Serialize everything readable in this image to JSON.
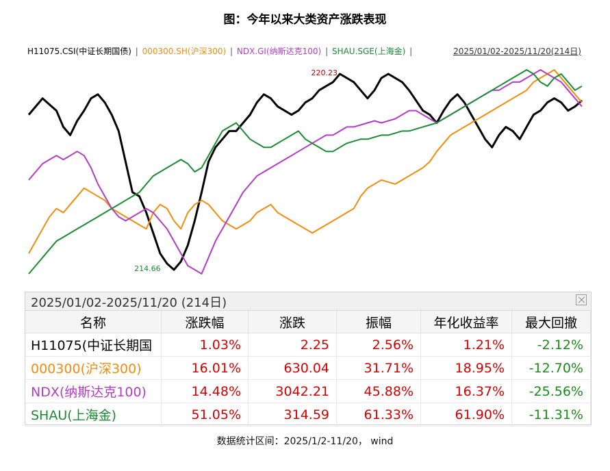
{
  "title": "图：今年以来大类资产涨跌表现",
  "legend_items": [
    {
      "label": "H11075.CSI(中证长期国债)",
      "color": "#000000"
    },
    {
      "label": "000300.SH(沪深300)",
      "color": "#f28c0f"
    },
    {
      "label": "NDX.GI(纳斯达克100)",
      "color": "#b23cc2"
    },
    {
      "label": "SHAU.SGE(上海金)",
      "color": "#1a8a34"
    }
  ],
  "legend_sep": "|",
  "date_range_label": "2025/01/02-2025/11/20(214日)",
  "chart_data": {
    "type": "line",
    "annotations": {
      "max_label": "220.23",
      "min_label": "214.66"
    },
    "x_start": "2025/01/02",
    "x_end": "2025/11/20",
    "series": [
      {
        "name": "H11075.CSI(中证长期国债)",
        "color": "#000000",
        "values": [
          0.78,
          0.82,
          0.86,
          0.83,
          0.8,
          0.72,
          0.68,
          0.75,
          0.8,
          0.86,
          0.88,
          0.84,
          0.78,
          0.7,
          0.55,
          0.4,
          0.38,
          0.3,
          0.2,
          0.1,
          0.05,
          0.02,
          0.06,
          0.14,
          0.26,
          0.4,
          0.55,
          0.62,
          0.66,
          0.7,
          0.7,
          0.74,
          0.78,
          0.84,
          0.88,
          0.86,
          0.82,
          0.8,
          0.78,
          0.8,
          0.84,
          0.86,
          0.9,
          0.92,
          0.94,
          0.98,
          0.96,
          0.94,
          0.9,
          0.86,
          0.9,
          0.96,
          0.98,
          0.96,
          0.94,
          0.9,
          0.85,
          0.8,
          0.78,
          0.74,
          0.8,
          0.85,
          0.88,
          0.84,
          0.78,
          0.72,
          0.66,
          0.62,
          0.68,
          0.72,
          0.7,
          0.66,
          0.72,
          0.78,
          0.8,
          0.84,
          0.86,
          0.84,
          0.8,
          0.82,
          0.85
        ]
      },
      {
        "name": "000300.SH(沪深300)",
        "color": "#f28c0f",
        "values": [
          0.1,
          0.16,
          0.22,
          0.28,
          0.32,
          0.3,
          0.34,
          0.38,
          0.42,
          0.4,
          0.38,
          0.36,
          0.32,
          0.3,
          0.28,
          0.26,
          0.24,
          0.22,
          0.3,
          0.34,
          0.32,
          0.26,
          0.22,
          0.3,
          0.34,
          0.36,
          0.34,
          0.3,
          0.26,
          0.24,
          0.22,
          0.24,
          0.26,
          0.3,
          0.32,
          0.34,
          0.3,
          0.28,
          0.26,
          0.24,
          0.22,
          0.2,
          0.22,
          0.24,
          0.26,
          0.28,
          0.3,
          0.32,
          0.38,
          0.42,
          0.44,
          0.46,
          0.45,
          0.44,
          0.46,
          0.48,
          0.5,
          0.52,
          0.55,
          0.6,
          0.64,
          0.68,
          0.7,
          0.72,
          0.74,
          0.76,
          0.78,
          0.8,
          0.82,
          0.84,
          0.86,
          0.88,
          0.9,
          0.94,
          0.96,
          0.98,
          1.0,
          0.96,
          0.92,
          0.88,
          0.84
        ]
      },
      {
        "name": "NDX.GI(纳斯达克100)",
        "color": "#b23cc2",
        "values": [
          0.46,
          0.5,
          0.54,
          0.56,
          0.58,
          0.56,
          0.58,
          0.6,
          0.58,
          0.52,
          0.44,
          0.38,
          0.32,
          0.28,
          0.26,
          0.28,
          0.3,
          0.32,
          0.3,
          0.26,
          0.22,
          0.16,
          0.1,
          0.04,
          0.02,
          0.0,
          0.08,
          0.16,
          0.22,
          0.28,
          0.34,
          0.4,
          0.44,
          0.48,
          0.5,
          0.52,
          0.54,
          0.56,
          0.58,
          0.6,
          0.62,
          0.64,
          0.66,
          0.68,
          0.68,
          0.7,
          0.72,
          0.72,
          0.73,
          0.74,
          0.75,
          0.74,
          0.75,
          0.76,
          0.78,
          0.8,
          0.8,
          0.78,
          0.76,
          0.74,
          0.76,
          0.78,
          0.8,
          0.82,
          0.84,
          0.86,
          0.88,
          0.9,
          0.9,
          0.92,
          0.94,
          0.94,
          0.96,
          0.98,
          1.0,
          0.98,
          0.96,
          0.94,
          0.9,
          0.86,
          0.82
        ]
      },
      {
        "name": "SHAU.SGE(上海金)",
        "color": "#1a8a34",
        "values": [
          0.0,
          0.04,
          0.08,
          0.12,
          0.16,
          0.18,
          0.2,
          0.22,
          0.24,
          0.26,
          0.28,
          0.3,
          0.32,
          0.34,
          0.36,
          0.38,
          0.4,
          0.44,
          0.48,
          0.5,
          0.52,
          0.54,
          0.56,
          0.54,
          0.5,
          0.52,
          0.58,
          0.64,
          0.7,
          0.72,
          0.74,
          0.7,
          0.66,
          0.64,
          0.62,
          0.62,
          0.64,
          0.66,
          0.68,
          0.7,
          0.66,
          0.64,
          0.62,
          0.6,
          0.6,
          0.62,
          0.64,
          0.65,
          0.66,
          0.66,
          0.67,
          0.68,
          0.68,
          0.69,
          0.7,
          0.7,
          0.71,
          0.72,
          0.73,
          0.74,
          0.76,
          0.78,
          0.8,
          0.82,
          0.84,
          0.86,
          0.88,
          0.9,
          0.92,
          0.94,
          0.96,
          0.98,
          1.0,
          0.98,
          0.94,
          0.92,
          0.96,
          0.98,
          0.94,
          0.9,
          0.92
        ]
      }
    ]
  },
  "table": {
    "header_range": "2025/01/02-2025/11/20 (214日)",
    "columns": [
      "名称",
      "涨跌幅",
      "涨跌",
      "振幅",
      "年化收益率",
      "最大回撤"
    ],
    "rows": [
      {
        "name": "H11075(中证长期国",
        "color": "#000000",
        "change_pct": "1.03%",
        "change": "2.25",
        "amplitude": "2.56%",
        "annualized": "1.21%",
        "max_drawdown": "-2.12%"
      },
      {
        "name": "000300(沪深300)",
        "color": "#f28c0f",
        "change_pct": "16.01%",
        "change": "630.04",
        "amplitude": "31.71%",
        "annualized": "18.95%",
        "max_drawdown": "-12.70%"
      },
      {
        "name": "NDX(纳斯达克100)",
        "color": "#b23cc2",
        "change_pct": "14.48%",
        "change": "3042.21",
        "amplitude": "45.88%",
        "annualized": "16.37%",
        "max_drawdown": "-25.56%"
      },
      {
        "name": "SHAU(上海金)",
        "color": "#1a8a34",
        "change_pct": "51.05%",
        "change": "314.59",
        "amplitude": "61.33%",
        "annualized": "61.90%",
        "max_drawdown": "-11.31%"
      }
    ]
  },
  "footer": "数据统计区间：2025/1/2-11/20， wind"
}
